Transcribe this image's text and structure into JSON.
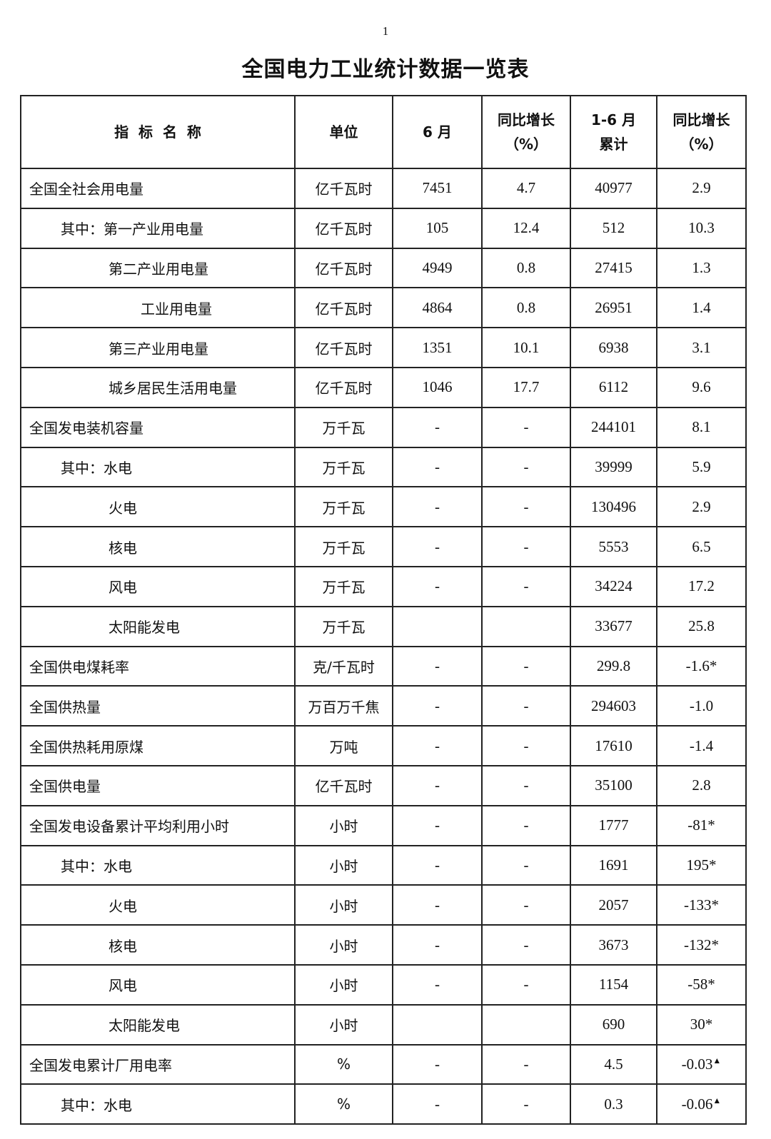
{
  "page_number": "1",
  "title": "全国电力工业统计数据一览表",
  "headers": {
    "name": "指  标  名  称",
    "unit": "单位",
    "month": "6 月",
    "month_yoy": [
      "同比增长",
      "（%）"
    ],
    "cumulative": [
      "1-6 月",
      "累计"
    ],
    "cumulative_yoy": [
      "同比增长",
      "（%）"
    ]
  },
  "rows": [
    {
      "name": "全国全社会用电量",
      "level": 0,
      "unit": "亿千瓦时",
      "month": "7451",
      "month_yoy": "4.7",
      "cum": "40977",
      "cum_yoy": "2.9"
    },
    {
      "name": "其中：第一产业用电量",
      "level": 1,
      "unit": "亿千瓦时",
      "month": "105",
      "month_yoy": "12.4",
      "cum": "512",
      "cum_yoy": "10.3"
    },
    {
      "name": "第二产业用电量",
      "level": 2,
      "unit": "亿千瓦时",
      "month": "4949",
      "month_yoy": "0.8",
      "cum": "27415",
      "cum_yoy": "1.3"
    },
    {
      "name": "工业用电量",
      "level": 3,
      "unit": "亿千瓦时",
      "month": "4864",
      "month_yoy": "0.8",
      "cum": "26951",
      "cum_yoy": "1.4"
    },
    {
      "name": "第三产业用电量",
      "level": 2,
      "unit": "亿千瓦时",
      "month": "1351",
      "month_yoy": "10.1",
      "cum": "6938",
      "cum_yoy": "3.1"
    },
    {
      "name": "城乡居民生活用电量",
      "level": 2,
      "unit": "亿千瓦时",
      "month": "1046",
      "month_yoy": "17.7",
      "cum": "6112",
      "cum_yoy": "9.6"
    },
    {
      "name": "全国发电装机容量",
      "level": 0,
      "unit": "万千瓦",
      "month": "-",
      "month_yoy": "-",
      "cum": "244101",
      "cum_yoy": "8.1"
    },
    {
      "name": "其中：水电",
      "level": 1,
      "unit": "万千瓦",
      "month": "-",
      "month_yoy": "-",
      "cum": "39999",
      "cum_yoy": "5.9"
    },
    {
      "name": "火电",
      "level": 2,
      "unit": "万千瓦",
      "month": "-",
      "month_yoy": "-",
      "cum": "130496",
      "cum_yoy": "2.9"
    },
    {
      "name": "核电",
      "level": 2,
      "unit": "万千瓦",
      "month": "-",
      "month_yoy": "-",
      "cum": "5553",
      "cum_yoy": "6.5"
    },
    {
      "name": "风电",
      "level": 2,
      "unit": "万千瓦",
      "month": "-",
      "month_yoy": "-",
      "cum": "34224",
      "cum_yoy": "17.2"
    },
    {
      "name": "太阳能发电",
      "level": 2,
      "unit": "万千瓦",
      "month": "",
      "month_yoy": "",
      "cum": "33677",
      "cum_yoy": "25.8"
    },
    {
      "name": "全国供电煤耗率",
      "level": 0,
      "unit": "克/千瓦时",
      "month": "-",
      "month_yoy": "-",
      "cum": "299.8",
      "cum_yoy": "-1.6*"
    },
    {
      "name": "全国供热量",
      "level": 0,
      "unit": "万百万千焦",
      "month": "-",
      "month_yoy": "-",
      "cum": "294603",
      "cum_yoy": "-1.0"
    },
    {
      "name": "全国供热耗用原煤",
      "level": 0,
      "unit": "万吨",
      "month": "-",
      "month_yoy": "-",
      "cum": "17610",
      "cum_yoy": "-1.4"
    },
    {
      "name": "全国供电量",
      "level": 0,
      "unit": "亿千瓦时",
      "month": "-",
      "month_yoy": "-",
      "cum": "35100",
      "cum_yoy": "2.8"
    },
    {
      "name": "全国发电设备累计平均利用小时",
      "level": 0,
      "unit": "小时",
      "month": "-",
      "month_yoy": "-",
      "cum": "1777",
      "cum_yoy": "-81*"
    },
    {
      "name": "其中：水电",
      "level": 1,
      "unit": "小时",
      "month": "-",
      "month_yoy": "-",
      "cum": "1691",
      "cum_yoy": "195*"
    },
    {
      "name": "火电",
      "level": 2,
      "unit": "小时",
      "month": "-",
      "month_yoy": "-",
      "cum": "2057",
      "cum_yoy": "-133*"
    },
    {
      "name": "核电",
      "level": 2,
      "unit": "小时",
      "month": "-",
      "month_yoy": "-",
      "cum": "3673",
      "cum_yoy": "-132*"
    },
    {
      "name": "风电",
      "level": 2,
      "unit": "小时",
      "month": "-",
      "month_yoy": "-",
      "cum": "1154",
      "cum_yoy": "-58*"
    },
    {
      "name": "太阳能发电",
      "level": 2,
      "unit": "小时",
      "month": "",
      "month_yoy": "",
      "cum": "690",
      "cum_yoy": "30*"
    },
    {
      "name": "全国发电累计厂用电率",
      "level": 0,
      "unit": "%",
      "month": "-",
      "month_yoy": "-",
      "cum": "4.5",
      "cum_yoy": "-0.03",
      "mark": "▲"
    },
    {
      "name": "其中：水电",
      "level": 1,
      "unit": "%",
      "month": "-",
      "month_yoy": "-",
      "cum": "0.3",
      "cum_yoy": "-0.06",
      "mark": "▲"
    }
  ]
}
